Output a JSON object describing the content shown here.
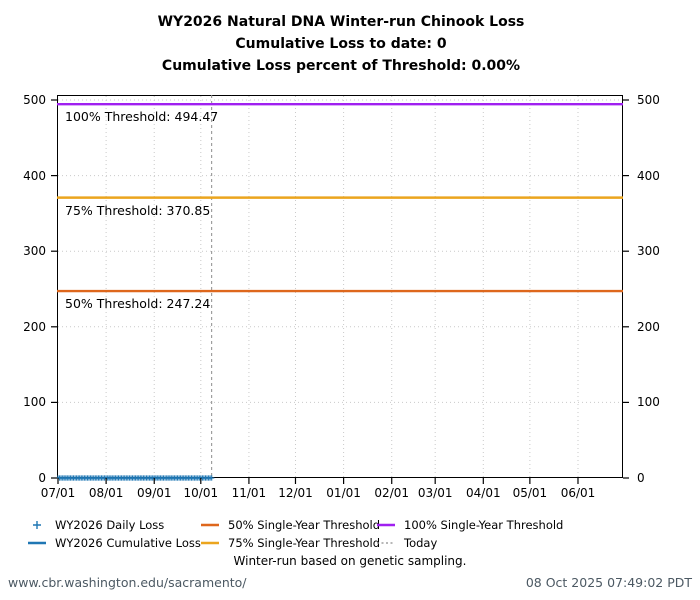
{
  "title": {
    "line1": "WY2026 Natural DNA Winter-run Chinook Loss",
    "line2": "Cumulative Loss to date: 0",
    "line3": "Cumulative Loss percent of Threshold: 0.00%"
  },
  "chart_data": {
    "type": "line",
    "title": "WY2026 Natural DNA Winter-run Chinook Loss",
    "x_axis": {
      "tick_labels": [
        "07/01",
        "08/01",
        "09/01",
        "10/01",
        "11/01",
        "12/01",
        "01/01",
        "02/01",
        "03/01",
        "04/01",
        "05/01",
        "06/01"
      ],
      "month_day_offsets": [
        0,
        31,
        62,
        92,
        123,
        153,
        184,
        215,
        243,
        274,
        304,
        335
      ],
      "days_total": 364
    },
    "y_axis": {
      "ticks": [
        0,
        100,
        200,
        300,
        400,
        500
      ],
      "range": [
        0,
        506
      ],
      "label_sides": "both"
    },
    "grid": true,
    "thresholds": [
      {
        "name": "100% Single-Year Threshold",
        "value": 494.47,
        "label": "100% Threshold: 494.47",
        "color": "#A020F0"
      },
      {
        "name": "75% Single-Year Threshold",
        "value": 370.85,
        "label": "75% Threshold: 370.85",
        "color": "#EBA51E"
      },
      {
        "name": "50% Single-Year Threshold",
        "value": 247.24,
        "label": "50% Threshold: 247.24",
        "color": "#DE671C"
      }
    ],
    "today": {
      "label": "Today",
      "date": "10/08",
      "day_index": 99,
      "color": "#8C8C8C"
    },
    "series": [
      {
        "name": "WY2026 Daily Loss",
        "type": "scatter",
        "marker": "plus",
        "color": "#1F77B4",
        "x_day_start": 0,
        "x_day_end": 99,
        "y_constant": 0
      },
      {
        "name": "WY2026 Cumulative Loss",
        "type": "line",
        "color": "#1F77B4",
        "x_day_start": 0,
        "x_day_end": 99,
        "y_constant": 0
      }
    ],
    "grid_color": "#C9C9C9",
    "legend_position": "below"
  },
  "legend": {
    "items": [
      {
        "label": "WY2026 Daily Loss",
        "marker": "plus",
        "color": "#1F77B4"
      },
      {
        "label": "WY2026 Cumulative Loss",
        "marker": "line",
        "color": "#1F77B4"
      },
      {
        "label": "50% Single-Year Threshold",
        "marker": "line",
        "color": "#DE671C"
      },
      {
        "label": "75% Single-Year Threshold",
        "marker": "line",
        "color": "#EBA51E"
      },
      {
        "label": "100% Single-Year Threshold",
        "marker": "line",
        "color": "#A020F0"
      },
      {
        "label": "Today",
        "marker": "dotted",
        "color": "#8C8C8C"
      }
    ]
  },
  "footnote": "Winter-run based on genetic sampling.",
  "footer": {
    "url": "www.cbr.washington.edu/sacramento/",
    "timestamp": "08 Oct 2025 07:49:02 PDT"
  }
}
